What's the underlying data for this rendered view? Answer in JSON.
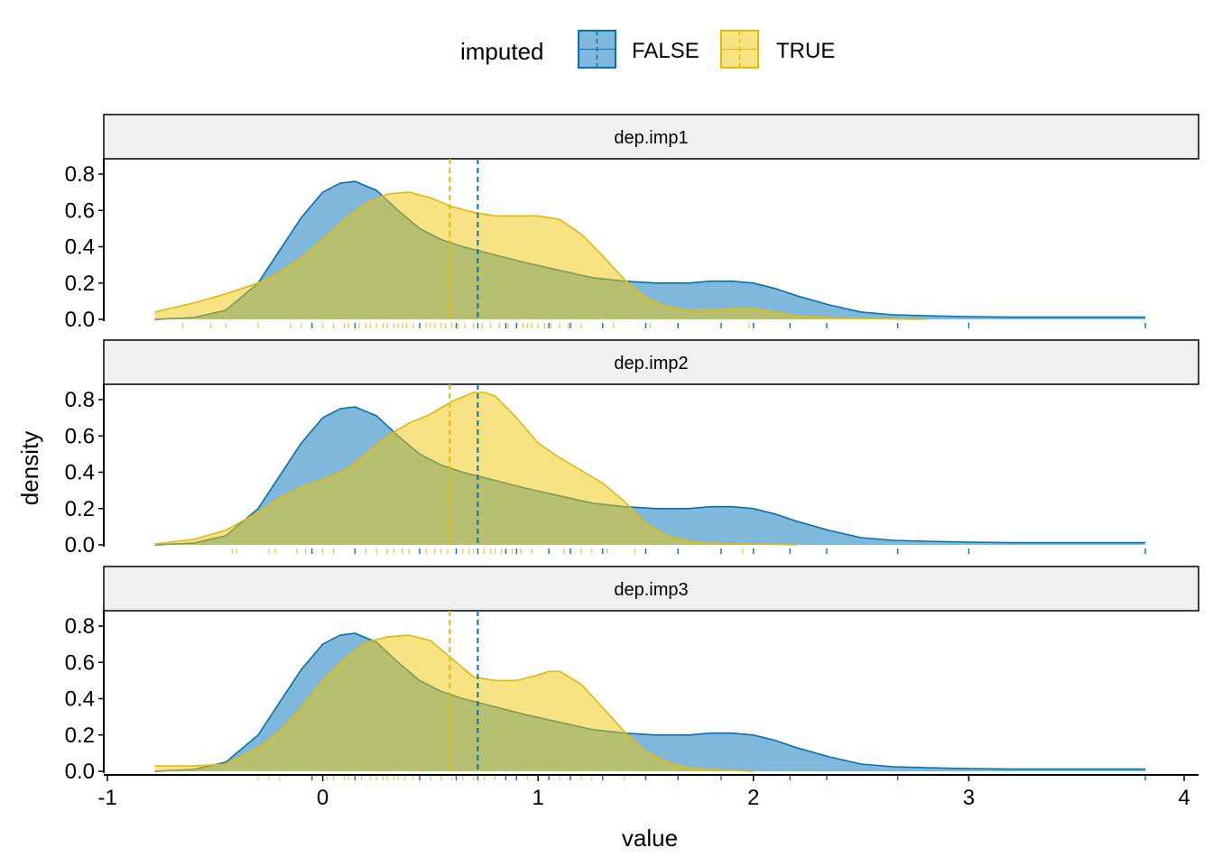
{
  "chart_data": {
    "type": "area",
    "subtype": "faceted density plot with rug marks and mean lines",
    "xlabel": "value",
    "ylabel": "density",
    "xlim": [
      -1,
      4
    ],
    "x_ticks": [
      "-1",
      "0",
      "1",
      "2",
      "3",
      "4"
    ],
    "x_tick_values": [
      -1,
      0,
      1,
      2,
      3,
      4
    ],
    "ylim": [
      0,
      0.85
    ],
    "y_ticks": [
      "0.0",
      "0.2",
      "0.4",
      "0.6",
      "0.8"
    ],
    "y_tick_values": [
      0,
      0.2,
      0.4,
      0.6,
      0.8
    ],
    "grid": false,
    "legend": {
      "title": "imputed",
      "position": "top",
      "entries": [
        {
          "label": "FALSE",
          "color": "#0072B5"
        },
        {
          "label": "TRUE",
          "color": "#E7B800"
        }
      ]
    },
    "colors": {
      "false_line": "#0072B5",
      "false_fill": "#0072B5",
      "true_line": "#E7B800",
      "true_fill": "#F0C808",
      "strip_bg": "#F0F0F0"
    },
    "facets": [
      {
        "label": "dep.imp1",
        "series": [
          {
            "name": "FALSE",
            "mean": 0.72,
            "x": [
              -0.78,
              -0.6,
              -0.45,
              -0.3,
              -0.2,
              -0.1,
              0.0,
              0.08,
              0.15,
              0.25,
              0.35,
              0.45,
              0.55,
              0.65,
              0.75,
              0.85,
              0.95,
              1.1,
              1.25,
              1.4,
              1.55,
              1.7,
              1.8,
              1.9,
              2.0,
              2.1,
              2.2,
              2.35,
              2.5,
              2.65,
              2.8,
              3.0,
              3.2,
              3.4,
              3.6,
              3.82
            ],
            "y": [
              0.0,
              0.01,
              0.05,
              0.2,
              0.38,
              0.56,
              0.7,
              0.75,
              0.76,
              0.71,
              0.6,
              0.5,
              0.44,
              0.4,
              0.37,
              0.34,
              0.31,
              0.27,
              0.23,
              0.21,
              0.2,
              0.2,
              0.21,
              0.21,
              0.2,
              0.17,
              0.13,
              0.08,
              0.04,
              0.025,
              0.02,
              0.015,
              0.012,
              0.012,
              0.012,
              0.012
            ]
          },
          {
            "name": "TRUE",
            "mean": 0.59,
            "x": [
              -0.78,
              -0.6,
              -0.45,
              -0.3,
              -0.2,
              -0.1,
              0.0,
              0.1,
              0.2,
              0.3,
              0.4,
              0.5,
              0.6,
              0.7,
              0.8,
              0.9,
              1.0,
              1.1,
              1.2,
              1.3,
              1.4,
              1.5,
              1.6,
              1.7,
              1.8,
              1.9,
              2.0,
              2.1,
              2.2,
              2.35,
              2.5,
              2.65,
              2.8
            ],
            "y": [
              0.04,
              0.09,
              0.14,
              0.2,
              0.26,
              0.34,
              0.44,
              0.55,
              0.64,
              0.69,
              0.7,
              0.67,
              0.62,
              0.59,
              0.57,
              0.57,
              0.57,
              0.55,
              0.47,
              0.35,
              0.22,
              0.12,
              0.07,
              0.05,
              0.05,
              0.06,
              0.06,
              0.04,
              0.02,
              0.01,
              0.005,
              0.002,
              0.0
            ]
          }
        ]
      },
      {
        "label": "dep.imp2",
        "series": [
          {
            "name": "FALSE",
            "mean": 0.72,
            "x": [
              -0.78,
              -0.6,
              -0.45,
              -0.3,
              -0.2,
              -0.1,
              0.0,
              0.08,
              0.15,
              0.25,
              0.35,
              0.45,
              0.55,
              0.65,
              0.75,
              0.85,
              0.95,
              1.1,
              1.25,
              1.4,
              1.55,
              1.7,
              1.8,
              1.9,
              2.0,
              2.1,
              2.2,
              2.35,
              2.5,
              2.65,
              2.8,
              3.0,
              3.2,
              3.4,
              3.6,
              3.82
            ],
            "y": [
              0.0,
              0.01,
              0.05,
              0.2,
              0.38,
              0.56,
              0.7,
              0.75,
              0.76,
              0.71,
              0.6,
              0.5,
              0.44,
              0.4,
              0.37,
              0.34,
              0.31,
              0.27,
              0.23,
              0.21,
              0.2,
              0.2,
              0.21,
              0.21,
              0.2,
              0.17,
              0.13,
              0.08,
              0.04,
              0.025,
              0.02,
              0.015,
              0.012,
              0.012,
              0.012,
              0.012
            ]
          },
          {
            "name": "TRUE",
            "mean": 0.59,
            "x": [
              -0.78,
              -0.6,
              -0.45,
              -0.3,
              -0.2,
              -0.1,
              0.0,
              0.1,
              0.2,
              0.3,
              0.4,
              0.5,
              0.6,
              0.7,
              0.75,
              0.8,
              0.9,
              1.0,
              1.1,
              1.2,
              1.3,
              1.4,
              1.5,
              1.6,
              1.7,
              1.8,
              2.0,
              2.2
            ],
            "y": [
              0.005,
              0.03,
              0.08,
              0.18,
              0.26,
              0.32,
              0.36,
              0.41,
              0.5,
              0.6,
              0.67,
              0.72,
              0.79,
              0.84,
              0.84,
              0.82,
              0.7,
              0.56,
              0.48,
              0.41,
              0.34,
              0.24,
              0.12,
              0.05,
              0.02,
              0.01,
              0.005,
              0.0
            ]
          }
        ]
      },
      {
        "label": "dep.imp3",
        "series": [
          {
            "name": "FALSE",
            "mean": 0.72,
            "x": [
              -0.78,
              -0.6,
              -0.45,
              -0.3,
              -0.2,
              -0.1,
              0.0,
              0.08,
              0.15,
              0.25,
              0.35,
              0.45,
              0.55,
              0.65,
              0.75,
              0.85,
              0.95,
              1.1,
              1.25,
              1.4,
              1.55,
              1.7,
              1.8,
              1.9,
              2.0,
              2.1,
              2.2,
              2.35,
              2.5,
              2.65,
              2.8,
              3.0,
              3.2,
              3.4,
              3.6,
              3.82
            ],
            "y": [
              0.0,
              0.01,
              0.05,
              0.2,
              0.38,
              0.56,
              0.7,
              0.75,
              0.76,
              0.71,
              0.6,
              0.5,
              0.44,
              0.4,
              0.37,
              0.34,
              0.31,
              0.27,
              0.23,
              0.21,
              0.2,
              0.2,
              0.21,
              0.21,
              0.2,
              0.17,
              0.13,
              0.08,
              0.04,
              0.025,
              0.02,
              0.015,
              0.012,
              0.012,
              0.012,
              0.012
            ]
          },
          {
            "name": "TRUE",
            "mean": 0.59,
            "x": [
              -0.78,
              -0.6,
              -0.45,
              -0.3,
              -0.2,
              -0.1,
              0.0,
              0.1,
              0.2,
              0.3,
              0.4,
              0.5,
              0.6,
              0.7,
              0.8,
              0.9,
              1.0,
              1.05,
              1.1,
              1.2,
              1.3,
              1.4,
              1.5,
              1.6,
              1.7,
              1.8,
              2.0
            ],
            "y": [
              0.03,
              0.03,
              0.04,
              0.13,
              0.22,
              0.35,
              0.5,
              0.62,
              0.71,
              0.74,
              0.75,
              0.72,
              0.62,
              0.52,
              0.5,
              0.5,
              0.53,
              0.55,
              0.55,
              0.48,
              0.35,
              0.22,
              0.11,
              0.05,
              0.02,
              0.01,
              0.0
            ]
          }
        ]
      }
    ],
    "rug": {
      "FALSE": [
        -0.05,
        0.15,
        0.45,
        0.62,
        0.72,
        0.85,
        0.9,
        1.05,
        1.15,
        1.3,
        1.5,
        1.65,
        1.85,
        2.0,
        2.17,
        2.34,
        2.67,
        3.0,
        3.82
      ],
      "TRUE_imp1": [
        -0.65,
        -0.52,
        -0.45,
        -0.3,
        -0.15,
        -0.1,
        -0.05,
        0.0,
        0.05,
        0.1,
        0.12,
        0.17,
        0.2,
        0.22,
        0.25,
        0.28,
        0.3,
        0.33,
        0.35,
        0.37,
        0.39,
        0.42,
        0.45,
        0.48,
        0.5,
        0.52,
        0.55,
        0.57,
        0.6,
        0.63,
        0.66,
        0.7,
        0.74,
        0.78,
        0.82,
        0.86,
        0.9,
        0.93,
        0.95,
        0.97,
        1.0,
        1.03,
        1.06,
        1.1,
        1.14,
        1.2,
        1.35,
        1.52,
        1.98
      ],
      "TRUE_imp2": [
        -0.42,
        -0.4,
        -0.25,
        -0.22,
        -0.12,
        -0.08,
        0.0,
        0.05,
        0.15,
        0.2,
        0.25,
        0.3,
        0.33,
        0.37,
        0.4,
        0.45,
        0.48,
        0.52,
        0.55,
        0.58,
        0.62,
        0.65,
        0.68,
        0.7,
        0.72,
        0.75,
        0.78,
        0.8,
        0.83,
        0.85,
        0.88,
        0.92,
        0.97,
        1.05,
        1.12,
        1.15,
        1.2,
        1.25,
        1.32,
        1.45,
        1.85,
        1.95
      ],
      "TRUE_imp3": [
        -0.3,
        -0.25,
        -0.2,
        -0.05,
        0.02,
        0.05,
        0.1,
        0.12,
        0.15,
        0.18,
        0.22,
        0.25,
        0.28,
        0.3,
        0.33,
        0.35,
        0.38,
        0.42,
        0.45,
        0.5,
        0.55,
        0.6,
        0.65,
        0.7,
        0.75,
        0.8,
        0.85,
        0.9,
        0.95,
        1.0,
        1.05,
        1.1,
        1.15,
        1.2,
        1.25,
        1.3,
        1.4,
        1.5,
        1.65
      ]
    }
  }
}
